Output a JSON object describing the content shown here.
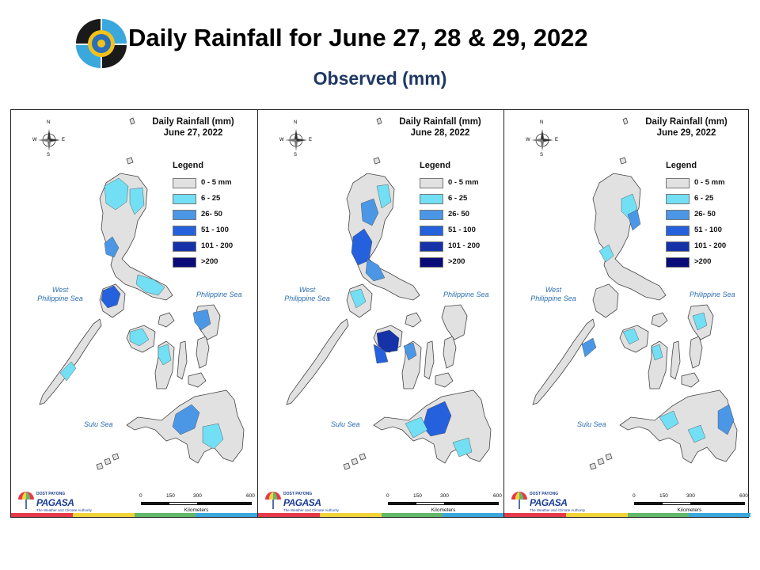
{
  "header": {
    "title": "Daily Rainfall for June 27, 28 & 29, 2022",
    "subtitle": "Observed (mm)"
  },
  "legend": {
    "title": "Legend",
    "classes": [
      {
        "label": "0 - 5 mm",
        "color": "#e1e1e1"
      },
      {
        "label": "6 - 25",
        "color": "#73dff4"
      },
      {
        "label": "26- 50",
        "color": "#4b97e6"
      },
      {
        "label": "51 - 100",
        "color": "#2561dc"
      },
      {
        "label": "101 - 200",
        "color": "#1532a8"
      },
      {
        "label": ">200",
        "color": "#0a0a78"
      }
    ]
  },
  "panels": [
    {
      "heading": "Daily Rainfall (mm)",
      "date": "June 27, 2022"
    },
    {
      "heading": "Daily Rainfall (mm)",
      "date": "June 28, 2022"
    },
    {
      "heading": "Daily Rainfall (mm)",
      "date": "June 29, 2022"
    }
  ],
  "labels": {
    "west_sea_line1": "West",
    "west_sea_line2": "Philippine Sea",
    "east_sea": "Philippine Sea",
    "sulu_sea": "Sulu Sea"
  },
  "compass": {
    "n": "N",
    "s": "S",
    "e": "E",
    "w": "W"
  },
  "scale": {
    "ticks": [
      "0",
      "150",
      "300",
      "600"
    ],
    "unit": "Kilometers"
  },
  "branding": {
    "small": "DOST PAYONG",
    "name": "PAGASA",
    "tagline": "The Weather and Climate Authority"
  },
  "footer_colors": [
    "#e6394a",
    "#f2d33a",
    "#63b96a",
    "#3aa8dd"
  ]
}
